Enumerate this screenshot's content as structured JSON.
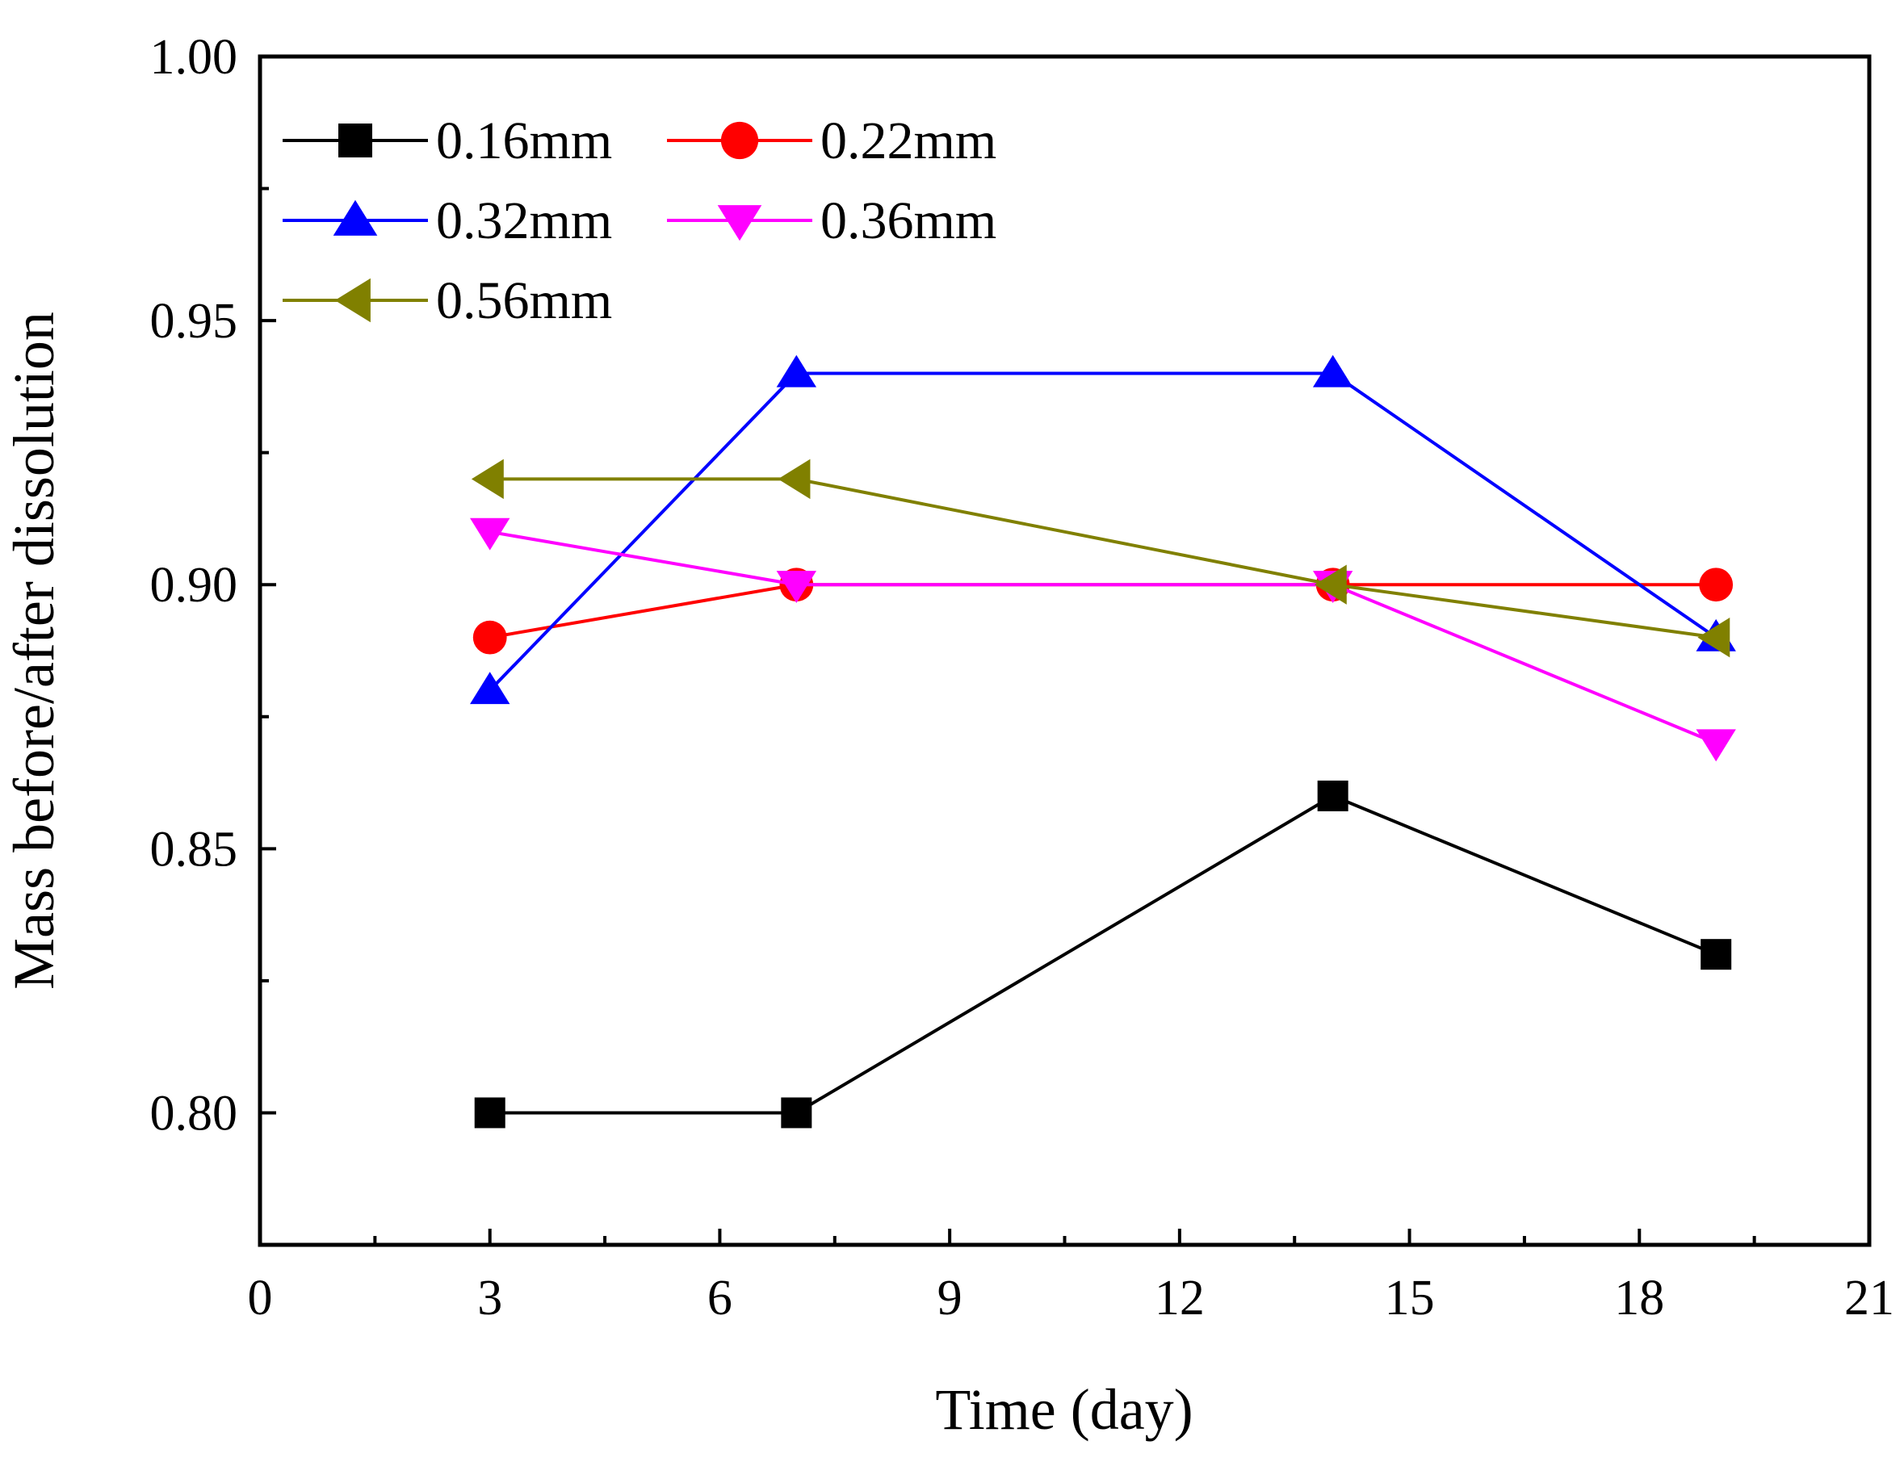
{
  "chart_data": {
    "type": "line",
    "title": "",
    "xlabel": "Time (day)",
    "ylabel": "Mass before/after dissolution",
    "xlim": [
      0,
      21
    ],
    "ylim": [
      0.775,
      1.0
    ],
    "xticks": [
      0,
      3,
      6,
      9,
      12,
      15,
      18,
      21
    ],
    "xtick_labels": [
      "0",
      "3",
      "6",
      "9",
      "12",
      "15",
      "18",
      "21"
    ],
    "yticks": [
      0.8,
      0.85,
      0.9,
      0.95,
      1.0
    ],
    "ytick_labels": [
      "0.80",
      "0.85",
      "0.90",
      "0.95",
      "1.00"
    ],
    "grid": false,
    "legend_position": "top-left",
    "x": [
      3,
      7,
      14,
      19
    ],
    "series": [
      {
        "name": "0.16mm",
        "values": [
          0.8,
          0.8,
          0.86,
          0.83
        ],
        "color": "#000000",
        "marker": "square"
      },
      {
        "name": "0.22mm",
        "values": [
          0.89,
          0.9,
          0.9,
          0.9
        ],
        "color": "#ff0000",
        "marker": "circle"
      },
      {
        "name": "0.32mm",
        "values": [
          0.88,
          0.94,
          0.94,
          0.89
        ],
        "color": "#0000ff",
        "marker": "triangle-up"
      },
      {
        "name": "0.36mm",
        "values": [
          0.91,
          0.9,
          0.9,
          0.87
        ],
        "color": "#ff00ff",
        "marker": "triangle-down"
      },
      {
        "name": "0.56mm",
        "values": [
          0.92,
          0.92,
          0.9,
          0.89
        ],
        "color": "#808000",
        "marker": "triangle-left"
      }
    ]
  }
}
